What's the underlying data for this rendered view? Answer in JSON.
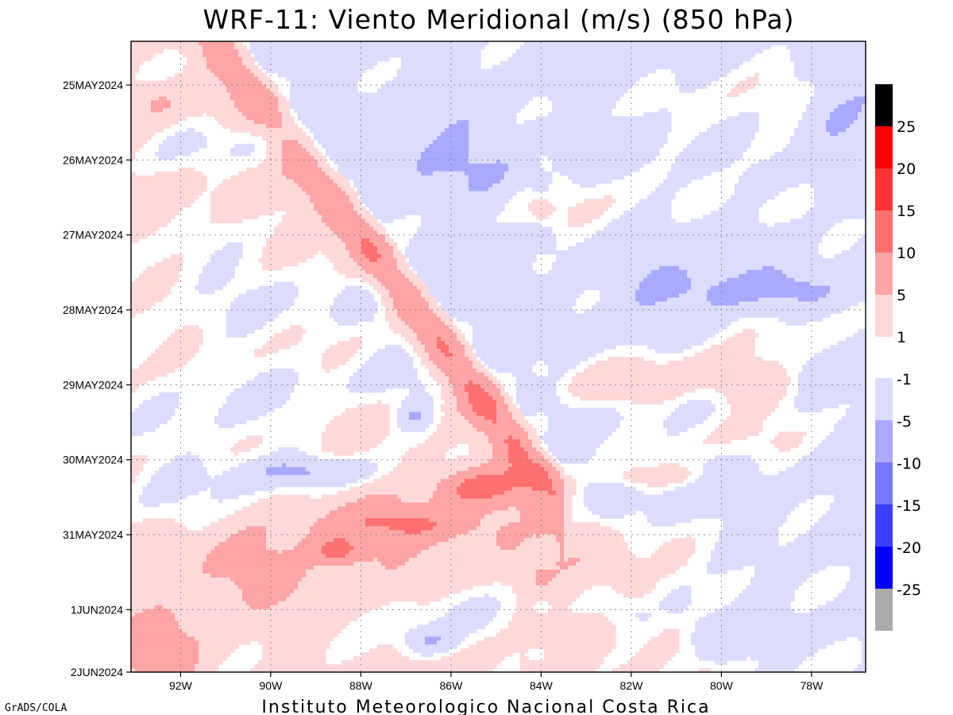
{
  "chart_data": {
    "type": "heatmap",
    "title": "WRF-11: Viento Meridional (m/s) (850 hPa)",
    "footer": "Instituto Meteorologico Nacional Costa Rica",
    "credit": "GrADS/COLA",
    "x_axis": {
      "range": [
        -93.1,
        -76.8
      ],
      "ticks": [
        -92,
        -90,
        -88,
        -86,
        -84,
        -82,
        -80,
        -78
      ],
      "tick_labels": [
        "92W",
        "90W",
        "88W",
        "86W",
        "84W",
        "82W",
        "80W",
        "78W"
      ]
    },
    "y_axis": {
      "range": [
        "24MAY2024 14:00",
        "2JUN2024 00:00"
      ],
      "ticks": [
        "25MAY2024",
        "26MAY2024",
        "27MAY2024",
        "28MAY2024",
        "29MAY2024",
        "30MAY2024",
        "31MAY2024",
        "1JUN2024",
        "2JUN2024"
      ],
      "tick_labels": [
        "25MAY2024",
        "26MAY2024",
        "27MAY2024",
        "28MAY2024",
        "29MAY2024",
        "30MAY2024",
        "31MAY2024",
        "1JUN2024",
        "2JUN2024"
      ],
      "time_increasing_downward": true
    },
    "grid": true,
    "colorbar": {
      "placement": "right",
      "positive_levels": [
        {
          "label": "25",
          "color": "#000000"
        },
        {
          "label": "20",
          "color": "#ff0000"
        },
        {
          "label": "15",
          "color": "#ff3333"
        },
        {
          "label": "10",
          "color": "#ff7070"
        },
        {
          "label": "5",
          "color": "#ffa5a5"
        },
        {
          "label": "1",
          "color": "#ffd9d9"
        }
      ],
      "negative_levels": [
        {
          "label": "-1",
          "color": "#dcdcff"
        },
        {
          "label": "-5",
          "color": "#a9a9ff"
        },
        {
          "label": "-10",
          "color": "#7777ff"
        },
        {
          "label": "-15",
          "color": "#3d3dff"
        },
        {
          "label": "-20",
          "color": "#0000ff"
        },
        {
          "label": "-25",
          "color": "#aaaaaa"
        }
      ]
    },
    "field": [
      {
        "lon": -92.5,
        "days": 0.8,
        "value": 3,
        "sx": 0.6,
        "sy": 0.25
      },
      {
        "lon": -90.5,
        "days": 1.4,
        "value": -3,
        "sx": 2.4,
        "sy": 0.35
      },
      {
        "lon": -86.0,
        "days": 1.5,
        "value": -3,
        "sx": 1.8,
        "sy": 0.5
      },
      {
        "lon": -83.0,
        "days": 2.2,
        "value": 3,
        "sx": 1.6,
        "sy": 0.5
      },
      {
        "lon": -79.5,
        "days": 0.9,
        "value": 3,
        "sx": 1.8,
        "sy": 0.6
      },
      {
        "lon": -79.0,
        "days": 2.2,
        "value": 3,
        "sx": 1.4,
        "sy": 0.3
      },
      {
        "lon": -77.5,
        "days": 1.3,
        "value": -3,
        "sx": 0.8,
        "sy": 0.6
      },
      {
        "lon": -91.0,
        "days": 3.2,
        "value": -3,
        "sx": 2.4,
        "sy": 0.6
      },
      {
        "lon": -87.5,
        "days": 3.6,
        "value": -3,
        "sx": 2.0,
        "sy": 0.5
      },
      {
        "lon": -81.0,
        "days": 3.2,
        "value": -3,
        "sx": 1.4,
        "sy": 0.35
      },
      {
        "lon": -79.0,
        "days": 3.3,
        "value": -3,
        "sx": 1.6,
        "sy": 0.3
      },
      {
        "lon": -78.5,
        "days": 3.9,
        "value": 3,
        "sx": 1.2,
        "sy": 0.35
      },
      {
        "lon": -80.5,
        "days": 4.3,
        "value": 3,
        "sx": 1.6,
        "sy": 0.25
      },
      {
        "lon": -82.0,
        "days": 4.6,
        "value": 6,
        "sx": 1.6,
        "sy": 0.3
      },
      {
        "lon": -79.3,
        "days": 4.6,
        "value": 6,
        "sx": 1.0,
        "sy": 0.3
      },
      {
        "lon": -91.0,
        "days": 4.8,
        "value": -3,
        "sx": 2.6,
        "sy": 0.8
      },
      {
        "lon": -87.0,
        "days": 4.5,
        "value": -3,
        "sx": 1.6,
        "sy": 0.4
      },
      {
        "lon": -86.8,
        "days": 5.0,
        "value": -6,
        "sx": 0.4,
        "sy": 0.2
      },
      {
        "lon": -89.0,
        "days": 5.75,
        "value": -6,
        "sx": 1.6,
        "sy": 0.2
      },
      {
        "lon": -91.5,
        "days": 5.9,
        "value": -3,
        "sx": 1.8,
        "sy": 0.5
      },
      {
        "lon": -87.0,
        "days": 6.45,
        "value": 6,
        "sx": 1.8,
        "sy": 0.22
      },
      {
        "lon": -85.3,
        "days": 5.95,
        "value": 9,
        "sx": 1.0,
        "sy": 0.25
      },
      {
        "lon": -88.5,
        "days": 6.8,
        "value": 9,
        "sx": 0.6,
        "sy": 0.18
      },
      {
        "lon": -90.5,
        "days": 7.1,
        "value": 5,
        "sx": 1.4,
        "sy": 0.4
      },
      {
        "lon": -87.0,
        "days": 6.6,
        "value": 3,
        "sx": 3.0,
        "sy": 0.6
      },
      {
        "lon": -81.5,
        "days": 5.8,
        "value": 5,
        "sx": 1.2,
        "sy": 0.15
      },
      {
        "lon": -79.5,
        "days": 5.3,
        "value": 3,
        "sx": 2.5,
        "sy": 0.4
      },
      {
        "lon": -92.5,
        "days": 8.2,
        "value": 6,
        "sx": 1.0,
        "sy": 0.6
      },
      {
        "lon": -86.0,
        "days": 7.6,
        "value": -3,
        "sx": 1.4,
        "sy": 0.5
      },
      {
        "lon": -86.5,
        "days": 8.0,
        "value": -6,
        "sx": 0.6,
        "sy": 0.2
      },
      {
        "lon": -81.0,
        "days": 7.0,
        "value": 3,
        "sx": 2.4,
        "sy": 0.5
      },
      {
        "lon": -82.0,
        "days": 7.6,
        "value": -3,
        "sx": 1.0,
        "sy": 0.3
      },
      {
        "lon": -80.0,
        "days": 8.0,
        "value": -3,
        "sx": 1.2,
        "sy": 0.4
      },
      {
        "lon": -79.0,
        "days": 8.2,
        "value": 3,
        "sx": 1.6,
        "sy": 0.4
      }
    ]
  }
}
